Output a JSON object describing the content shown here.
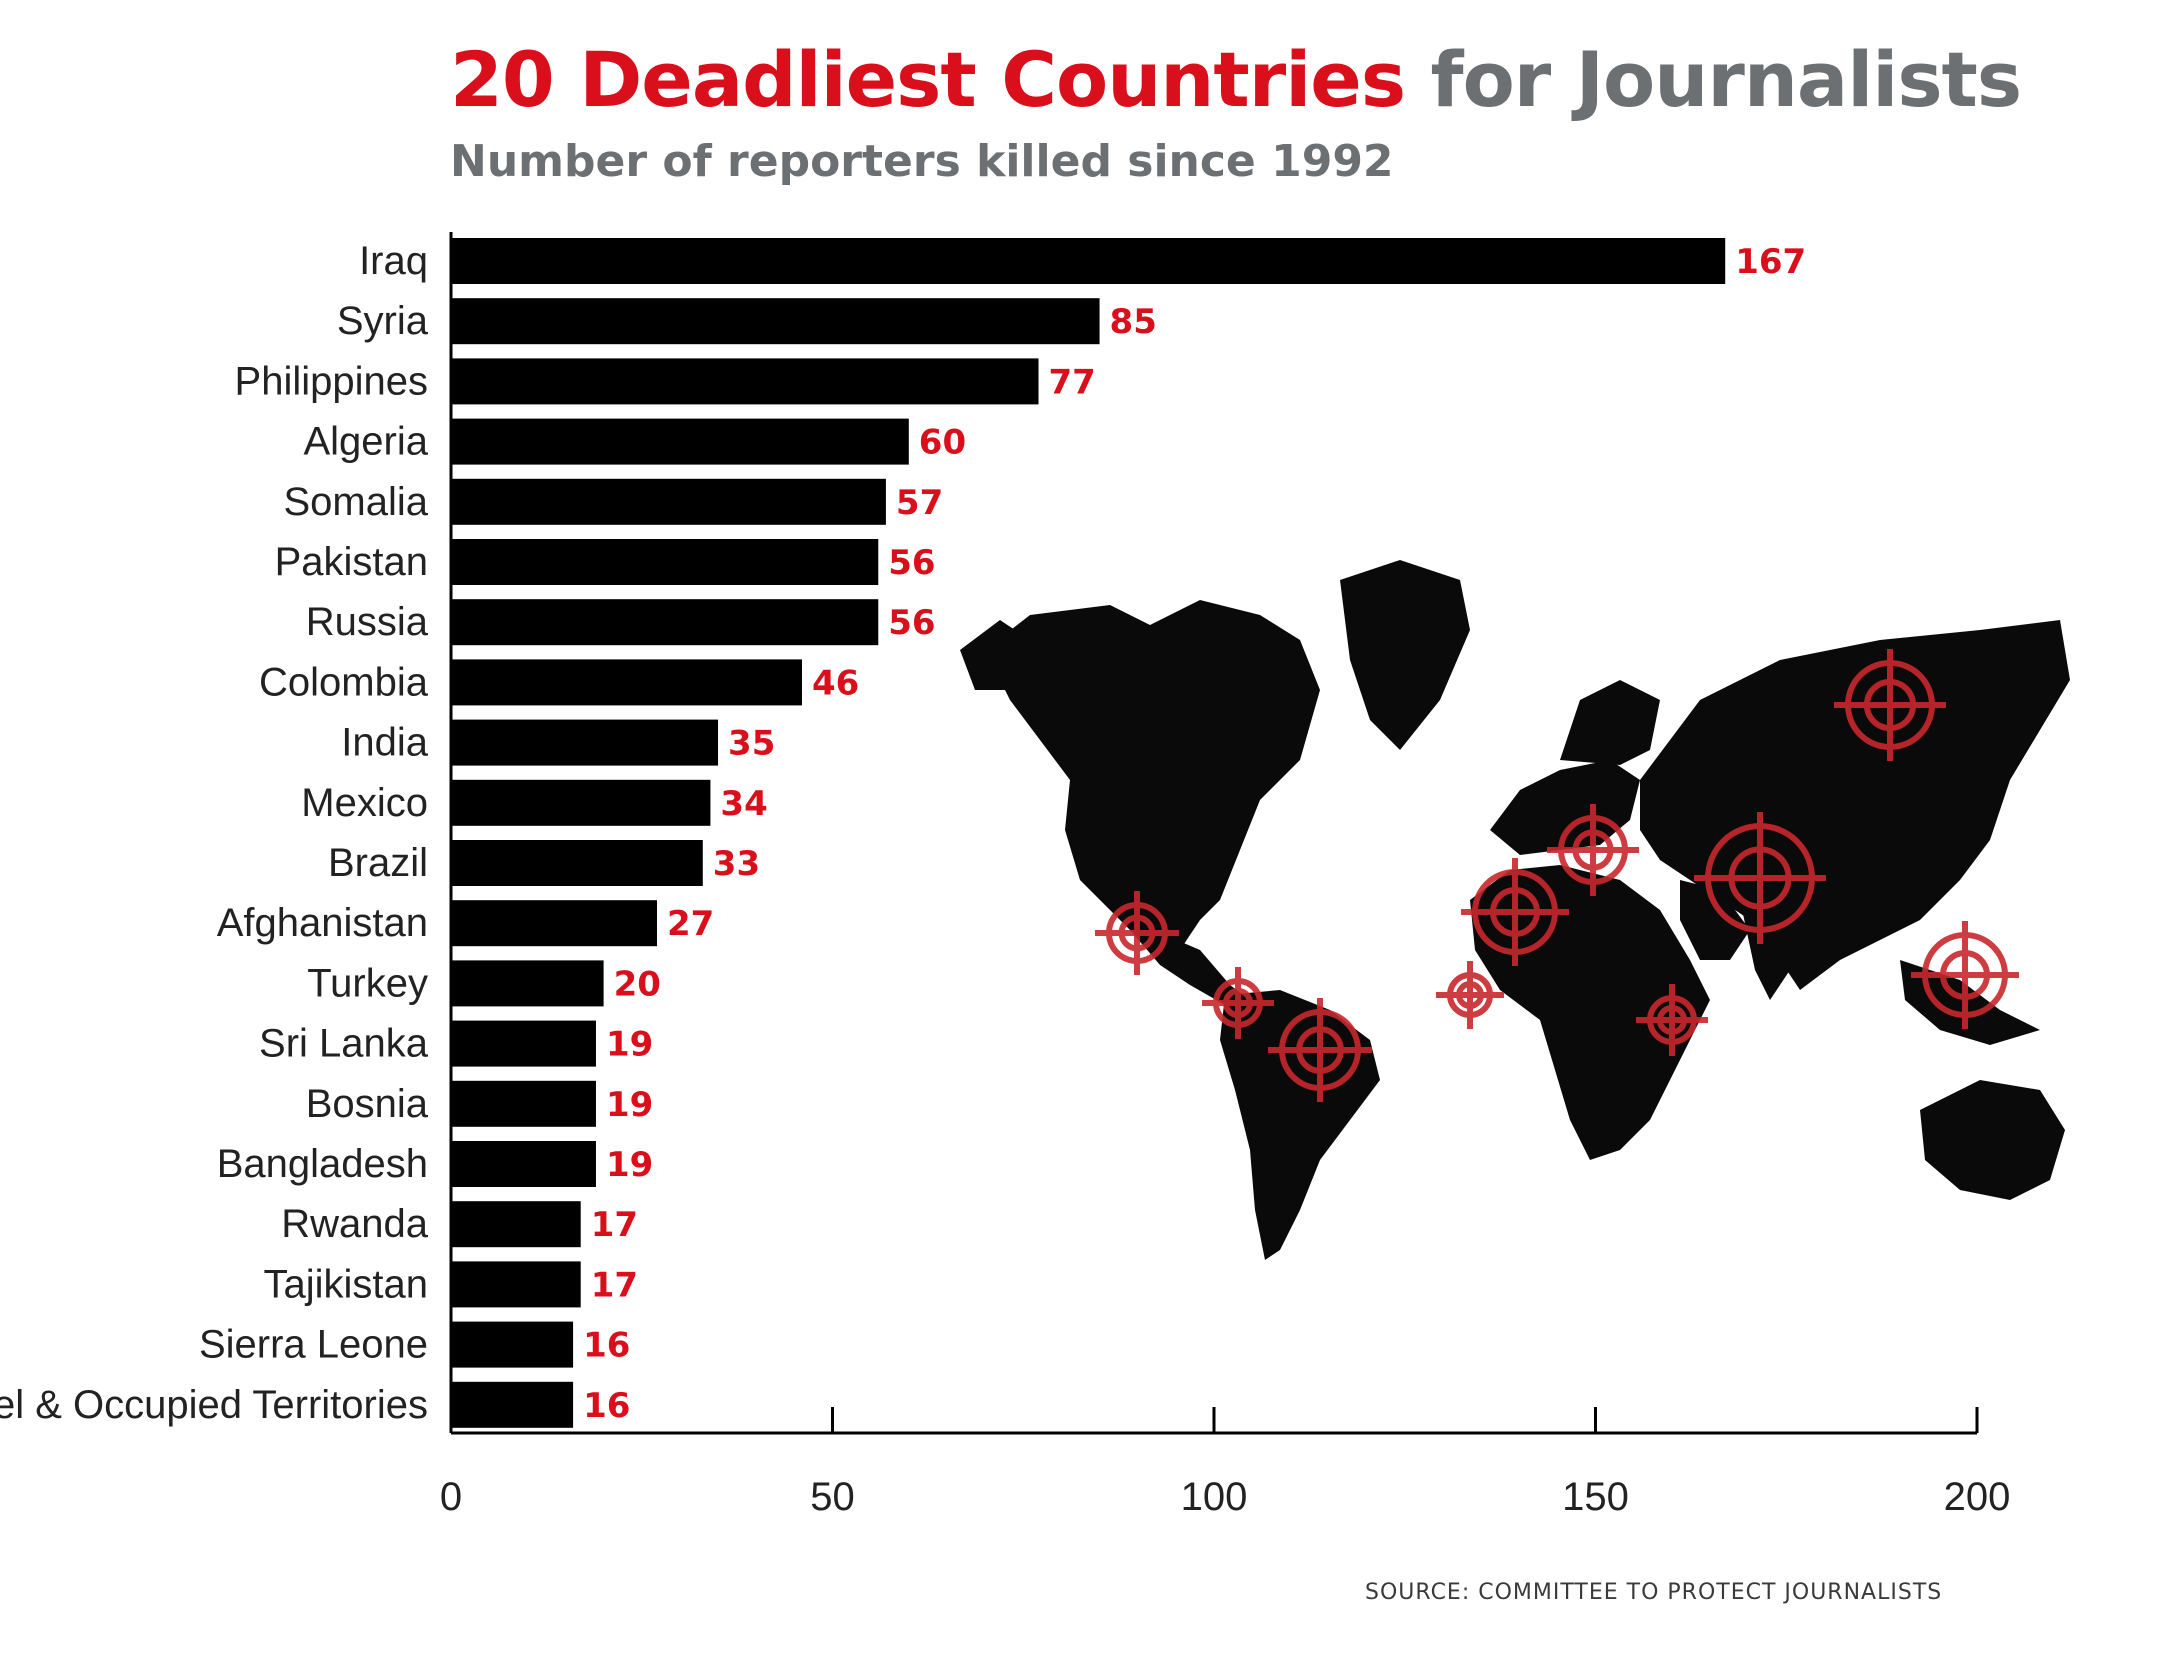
{
  "title_highlight": "20 Deadliest Countries",
  "title_rest": "for Journalists",
  "subtitle": "Number of reporters killed since 1992",
  "source": "SOURCE: COMMITTEE TO PROTECT JOURNALISTS",
  "colors": {
    "bar": "#000000",
    "value_label": "#d90f1b",
    "title_red": "#d90f1b",
    "title_gray": "#6d7073",
    "target": "#c8272d"
  },
  "chart_data": {
    "type": "bar",
    "orientation": "horizontal",
    "title": "20 Deadliest Countries for Journalists",
    "subtitle": "Number of reporters killed since 1992",
    "categories": [
      "Iraq",
      "Syria",
      "Philippines",
      "Algeria",
      "Somalia",
      "Pakistan",
      "Russia",
      "Colombia",
      "India",
      "Mexico",
      "Brazil",
      "Afghanistan",
      "Turkey",
      "Sri Lanka",
      "Bosnia",
      "Bangladesh",
      "Rwanda",
      "Tajikistan",
      "Sierra Leone",
      "Israel & Occupied Territories"
    ],
    "values": [
      167,
      85,
      77,
      60,
      57,
      56,
      56,
      46,
      35,
      34,
      33,
      27,
      20,
      19,
      19,
      19,
      17,
      17,
      16,
      16
    ],
    "xlim": [
      0,
      200
    ],
    "xticks": [
      0,
      50,
      100,
      150,
      200
    ],
    "xlabel": "",
    "ylabel": "",
    "grid": false,
    "background_map": "world-map-icon"
  }
}
